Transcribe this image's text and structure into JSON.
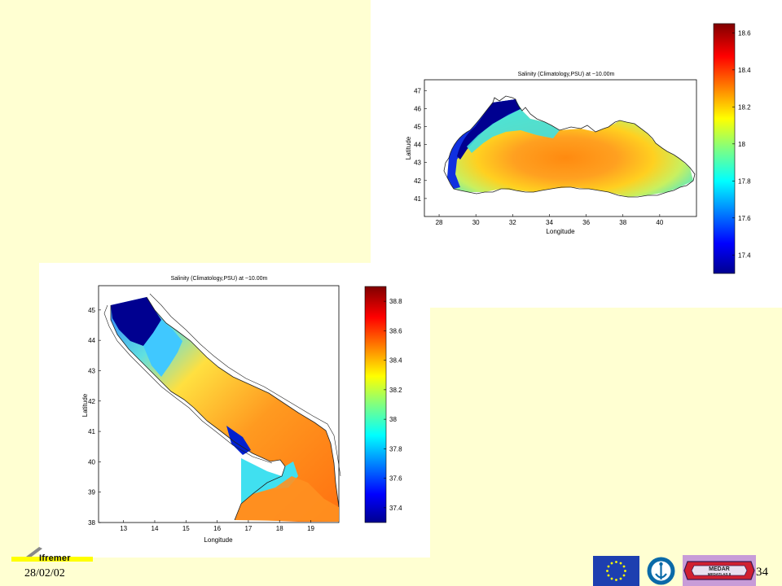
{
  "footer": {
    "date": "28/02/02",
    "page_number": "34",
    "logo_text": "Ifremer"
  },
  "logos": {
    "medar_top": "MEDAR",
    "medar_bottom": "MEDATLAS II"
  },
  "maps": [
    {
      "id": "black-sea",
      "title": "Salinity (Climatology,PSU) at ~10.00m",
      "xlabel": "Longitude",
      "ylabel": "Latitude",
      "xticks": [
        "28",
        "30",
        "32",
        "34",
        "36",
        "38",
        "40"
      ],
      "yticks": [
        "41",
        "42",
        "43",
        "44",
        "45",
        "46",
        "47"
      ],
      "xlim": [
        27.2,
        42.0
      ],
      "ylim": [
        40.0,
        47.6
      ],
      "colorbar": {
        "ticks": [
          "17.4",
          "17.6",
          "17.8",
          "18",
          "18.2",
          "18.4",
          "18.6"
        ],
        "range": [
          17.3,
          18.65
        ]
      }
    },
    {
      "id": "adriatic-sea",
      "title": "Salinity (Climatology,PSU) at ~10.00m",
      "xlabel": "Longitude",
      "ylabel": "Latitude",
      "xticks": [
        "13",
        "14",
        "15",
        "16",
        "17",
        "18",
        "19"
      ],
      "yticks": [
        "38",
        "39",
        "40",
        "41",
        "42",
        "43",
        "44",
        "45"
      ],
      "xlim": [
        12.2,
        19.9
      ],
      "ylim": [
        38.0,
        45.8
      ],
      "colorbar": {
        "ticks": [
          "37.4",
          "37.6",
          "37.8",
          "38",
          "38.2",
          "38.4",
          "38.6",
          "38.8"
        ],
        "range": [
          37.3,
          38.9
        ]
      }
    }
  ]
}
